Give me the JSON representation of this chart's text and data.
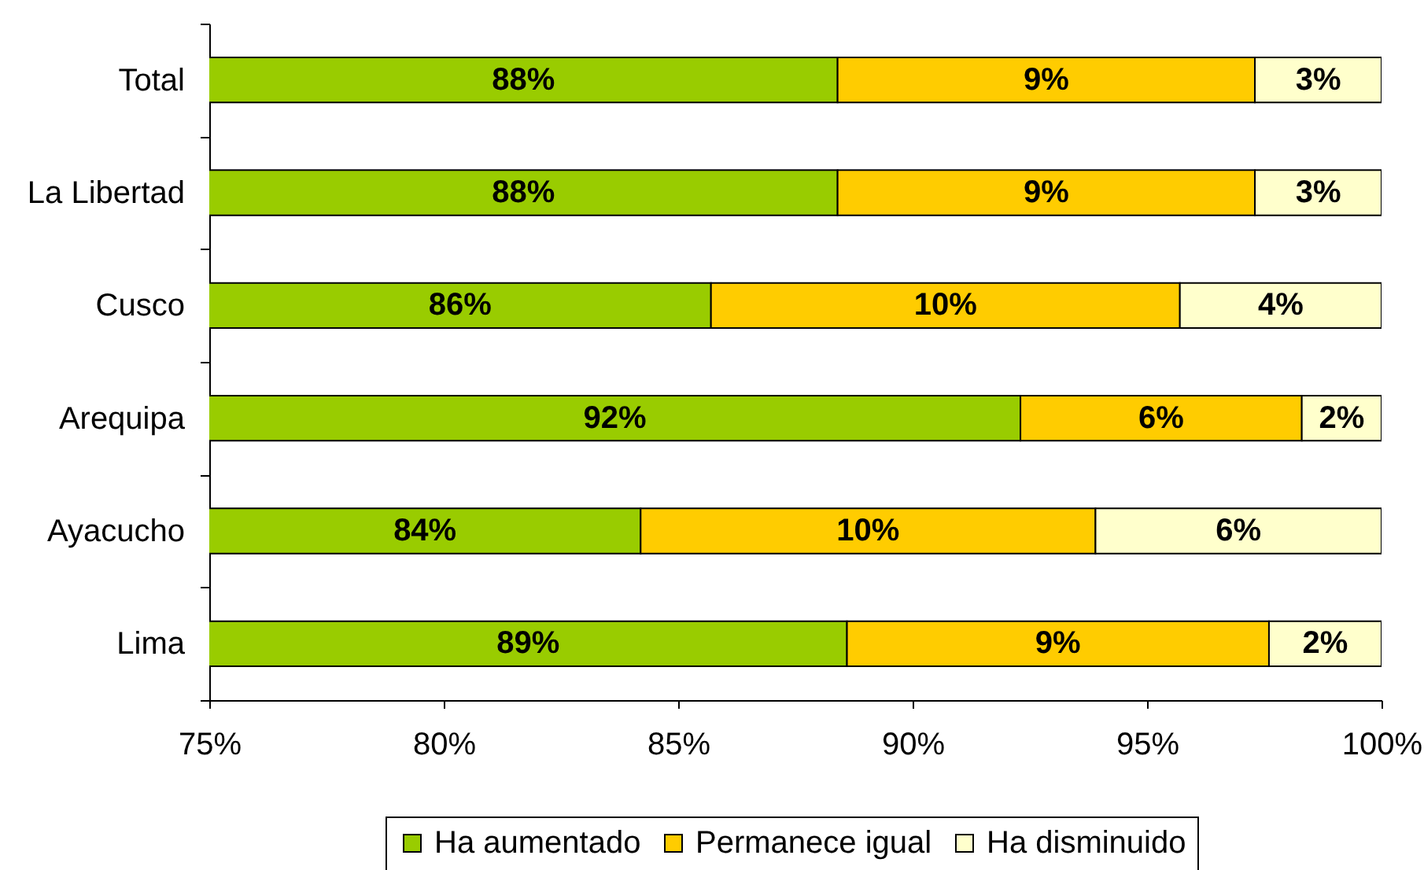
{
  "chart_data": {
    "type": "bar",
    "orientation": "horizontal",
    "stacked": true,
    "categories": [
      "Total",
      "La Libertad",
      "Cusco",
      "Arequipa",
      "Ayacucho",
      "Lima"
    ],
    "series": [
      {
        "name": "Ha aumentado",
        "color": "#99cc00",
        "values": [
          88.4,
          88.4,
          85.7,
          92.3,
          84.2,
          88.6
        ],
        "value_labels": [
          "88%",
          "88%",
          "86%",
          "92%",
          "84%",
          "89%"
        ]
      },
      {
        "name": "Permanece igual",
        "color": "#ffcc00",
        "base": [
          88.4,
          88.4,
          85.7,
          92.3,
          84.2,
          88.6
        ],
        "values": [
          8.9,
          8.9,
          10.0,
          6.0,
          9.7,
          9.0
        ],
        "value_labels": [
          "9%",
          "9%",
          "10%",
          "6%",
          "10%",
          "9%"
        ]
      },
      {
        "name": "Ha disminuido",
        "color": "#ffffcc",
        "base": [
          97.3,
          97.3,
          95.7,
          98.3,
          93.9,
          97.6
        ],
        "values": [
          2.7,
          2.7,
          4.3,
          1.7,
          6.1,
          2.4
        ],
        "value_labels": [
          "3%",
          "3%",
          "4%",
          "2%",
          "6%",
          "2%"
        ]
      }
    ],
    "xlim": [
      75,
      100
    ],
    "xticks": [
      {
        "value": 75,
        "label": "75%"
      },
      {
        "value": 80,
        "label": "80%"
      },
      {
        "value": 85,
        "label": "85%"
      },
      {
        "value": 90,
        "label": "90%"
      },
      {
        "value": 95,
        "label": "95%"
      },
      {
        "value": 100,
        "label": "100%"
      }
    ],
    "legend": "bottom",
    "grid": false
  }
}
